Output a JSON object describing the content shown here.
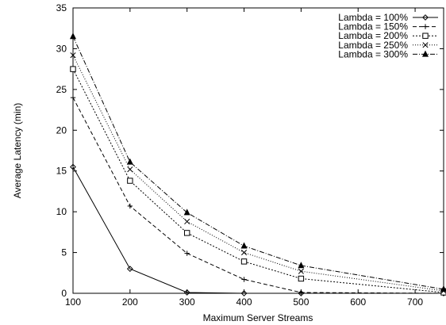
{
  "chart_data": {
    "type": "line",
    "title": "",
    "xlabel": "Maximum Server Streams",
    "ylabel": "Average Latency (min)",
    "xlim": [
      100,
      750
    ],
    "ylim": [
      0,
      35
    ],
    "xticks": [
      100,
      200,
      300,
      400,
      500,
      600,
      700
    ],
    "yticks": [
      0,
      5,
      10,
      15,
      20,
      25,
      30,
      35
    ],
    "grid": false,
    "legend_position": "top-right",
    "series": [
      {
        "name": "Lambda = 100%",
        "marker": "diamond",
        "dash": "solid",
        "x": [
          100,
          200,
          300,
          400,
          500,
          750
        ],
        "y": [
          15.5,
          3.0,
          0.1,
          0.0,
          0.0,
          0.0
        ]
      },
      {
        "name": "Lambda = 150%",
        "marker": "plus",
        "dash": "dashed",
        "x": [
          100,
          200,
          300,
          400,
          500,
          750
        ],
        "y": [
          24.0,
          10.7,
          4.9,
          1.7,
          0.1,
          0.0
        ]
      },
      {
        "name": "Lambda = 200%",
        "marker": "square",
        "dash": "dotted",
        "x": [
          100,
          200,
          300,
          400,
          500,
          750
        ],
        "y": [
          27.5,
          13.8,
          7.4,
          3.9,
          1.8,
          0.1
        ]
      },
      {
        "name": "Lambda = 250%",
        "marker": "cross",
        "dash": "fine-dotted",
        "x": [
          100,
          200,
          300,
          400,
          500,
          750
        ],
        "y": [
          29.2,
          15.2,
          8.8,
          5.0,
          2.7,
          0.3
        ]
      },
      {
        "name": "Lambda = 300%",
        "marker": "triangle",
        "dash": "dash-dot",
        "x": [
          100,
          200,
          300,
          400,
          500,
          750
        ],
        "y": [
          31.5,
          16.1,
          9.9,
          5.8,
          3.4,
          0.5
        ]
      }
    ]
  }
}
